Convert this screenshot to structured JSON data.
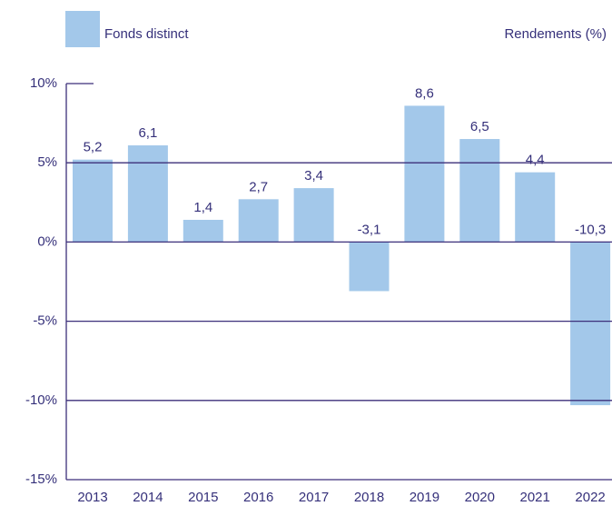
{
  "chart_data": {
    "type": "bar",
    "legend_label": "Fonds distinct",
    "y_axis_label": "Rendements (%)",
    "categories": [
      "2013",
      "2014",
      "2015",
      "2016",
      "2017",
      "2018",
      "2019",
      "2020",
      "2021",
      "2022"
    ],
    "values": [
      5.2,
      6.1,
      1.4,
      2.7,
      3.4,
      -3.1,
      8.6,
      6.5,
      4.4,
      -10.3
    ],
    "value_labels": [
      "5,2",
      "6,1",
      "1,4",
      "2,7",
      "3,4",
      "-3,1",
      "8,6",
      "6,5",
      "4,4",
      "-10,3"
    ],
    "color": "#a3c8ea",
    "ylim": [
      -15,
      10
    ],
    "yticks": [
      {
        "value": -15,
        "label": "-15%"
      },
      {
        "value": -10,
        "label": "-10%"
      },
      {
        "value": -5,
        "label": "-5%"
      },
      {
        "value": 0,
        "label": "0%"
      },
      {
        "value": 5,
        "label": "5%"
      },
      {
        "value": 10,
        "label": "10%"
      }
    ],
    "grid": true
  }
}
